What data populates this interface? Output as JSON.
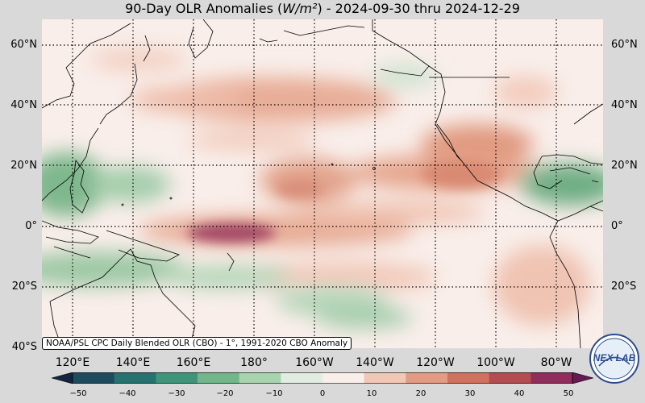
{
  "title": {
    "prefix": "90-Day OLR Anomalies (",
    "unit": "W/m²",
    "suffix": ") - 2024-09-30 thru 2024-12-29"
  },
  "lat_labels": [
    "60°N",
    "40°N",
    "20°N",
    "0°",
    "20°S",
    "40°S"
  ],
  "lon_labels": [
    "120°E",
    "140°E",
    "160°E",
    "180°",
    "160°W",
    "140°W",
    "120°W",
    "100°W",
    "80°W"
  ],
  "credit": "NOAA/PSL CPC Daily Blended OLR (CBO) - 1°, 1991-2020 CBO Anomaly",
  "colorbar": {
    "ticks": [
      "−50",
      "−40",
      "−30",
      "−20",
      "−10",
      "0",
      "10",
      "20",
      "30",
      "40",
      "50"
    ],
    "colors": [
      "#15243f",
      "#1f4b5e",
      "#27716e",
      "#3f947a",
      "#72b68b",
      "#a9d2ae",
      "#e1ede2",
      "#f9eeea",
      "#f2c7b5",
      "#e39b83",
      "#cf725e",
      "#b24d51",
      "#8f2e5c",
      "#651a52"
    ]
  },
  "logo": {
    "text": "NEX LAB"
  },
  "colors": {
    "background": "#d9d9d9",
    "land_outline": "#000000",
    "neutral": "#f9eeea"
  }
}
